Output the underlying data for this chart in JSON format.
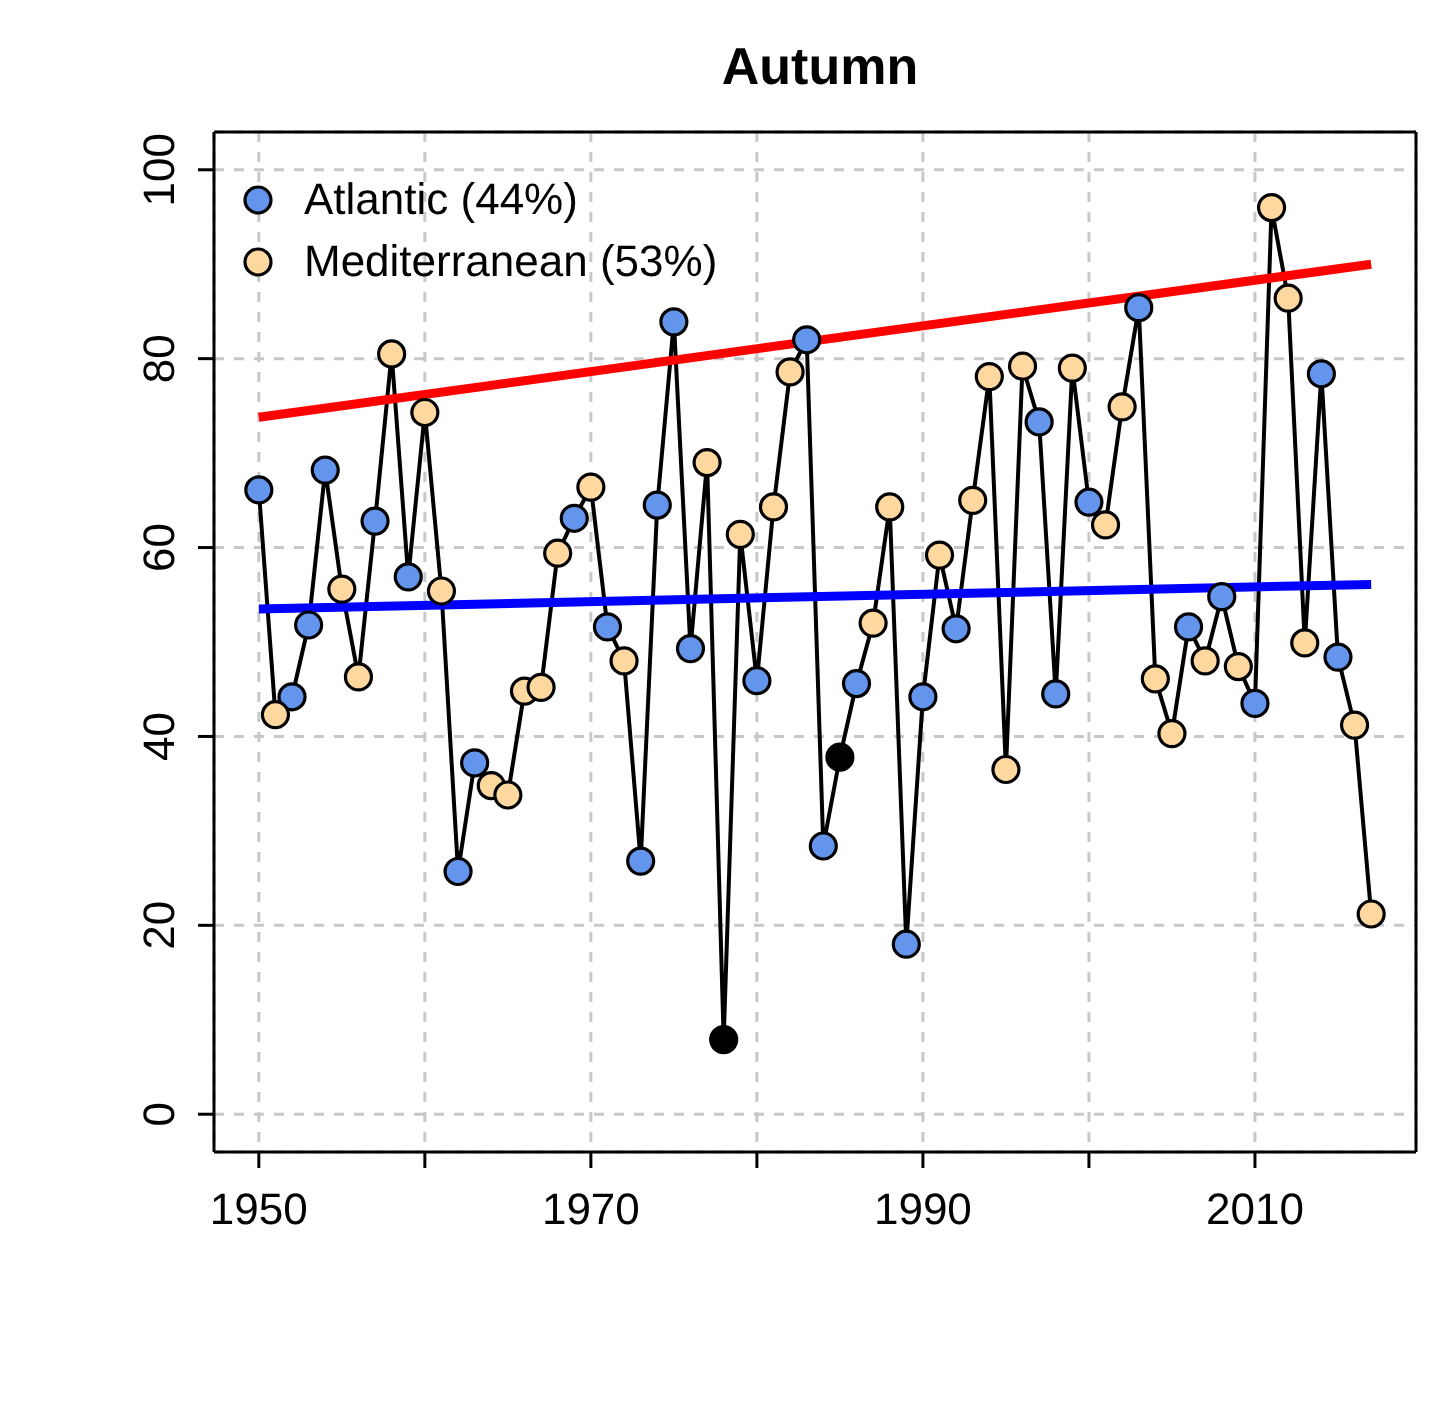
{
  "chart_data": {
    "type": "line",
    "title": "Autumn",
    "x": [
      1950,
      1951,
      1952,
      1953,
      1954,
      1955,
      1956,
      1957,
      1958,
      1959,
      1960,
      1961,
      1962,
      1963,
      1964,
      1965,
      1966,
      1967,
      1968,
      1969,
      1970,
      1971,
      1972,
      1973,
      1974,
      1975,
      1976,
      1977,
      1978,
      1979,
      1980,
      1981,
      1982,
      1983,
      1984,
      1985,
      1986,
      1987,
      1988,
      1989,
      1990,
      1991,
      1992,
      1993,
      1994,
      1995,
      1996,
      1997,
      1998,
      1999,
      2000,
      2001,
      2002,
      2003,
      2004,
      2005,
      2006,
      2007,
      2008,
      2009,
      2010,
      2011,
      2012,
      2013,
      2014,
      2015,
      2016,
      2017
    ],
    "series": [
      {
        "color": "#000000",
        "marker": "none",
        "values": [
          66.1,
          42.3,
          44.2,
          51.8,
          68.2,
          55.6,
          46.3,
          62.8,
          80.5,
          56.9,
          74.3,
          55.4,
          25.7,
          37.2,
          34.8,
          33.8,
          44.8,
          45.2,
          59.4,
          63.1,
          66.4,
          51.6,
          48.0,
          26.8,
          64.5,
          83.9,
          49.3,
          69.0,
          7.9,
          61.4,
          45.9,
          64.3,
          78.6,
          82.0,
          28.4,
          37.8,
          45.6,
          52.0,
          64.3,
          18.0,
          44.2,
          59.2,
          51.4,
          65.0,
          78.1,
          36.5,
          79.2,
          73.3,
          44.5,
          79.0,
          64.8,
          62.4,
          74.9,
          85.4,
          46.1,
          40.3,
          51.6,
          48.0,
          54.8,
          47.4,
          43.5,
          96.0,
          86.4,
          49.9,
          78.4,
          48.4,
          41.2,
          21.2
        ]
      },
      {
        "color": "#ff0000",
        "marker": "none",
        "x": [
          1950,
          2017
        ],
        "values": [
          73.8,
          90.0
        ]
      },
      {
        "color": "#0000ff",
        "marker": "none",
        "x": [
          1950,
          2017
        ],
        "values": [
          53.5,
          56.1
        ]
      },
      {
        "type": "scatter",
        "name": "Atlantic (44%)",
        "color": "#6495ed",
        "x": [
          1950,
          1952,
          1953,
          1954,
          1957,
          1959,
          1962,
          1963,
          1969,
          1971,
          1973,
          1974,
          1975,
          1976,
          1980,
          1983,
          1984,
          1986,
          1989,
          1990,
          1992,
          1997,
          1998,
          2000,
          2003,
          2006,
          2008,
          2010,
          2014,
          2015
        ],
        "values": [
          66.1,
          44.2,
          51.8,
          68.2,
          62.8,
          56.9,
          25.7,
          37.2,
          63.1,
          51.6,
          26.8,
          64.5,
          83.9,
          49.3,
          45.9,
          82.0,
          28.4,
          45.6,
          18.0,
          44.2,
          51.4,
          73.3,
          44.5,
          64.8,
          85.4,
          51.6,
          54.8,
          43.5,
          78.4,
          48.4
        ]
      },
      {
        "type": "scatter",
        "name": "Mediterranean (53%)",
        "color": "#ffd8a0",
        "x": [
          1951,
          1955,
          1956,
          1958,
          1960,
          1961,
          1964,
          1965,
          1966,
          1967,
          1968,
          1970,
          1972,
          1977,
          1979,
          1981,
          1982,
          1987,
          1988,
          1991,
          1993,
          1994,
          1995,
          1996,
          1999,
          2001,
          2002,
          2004,
          2005,
          2007,
          2009,
          2011,
          2012,
          2013,
          2016,
          2017
        ],
        "values": [
          42.3,
          55.6,
          46.3,
          80.5,
          74.3,
          55.4,
          34.8,
          33.8,
          44.8,
          45.2,
          59.4,
          66.4,
          48.0,
          69.0,
          61.4,
          64.3,
          78.6,
          52.0,
          64.3,
          59.2,
          65.0,
          78.1,
          36.5,
          79.2,
          79.0,
          62.4,
          74.9,
          46.1,
          40.3,
          48.0,
          47.4,
          96.0,
          86.4,
          49.9,
          41.2,
          21.2
        ]
      },
      {
        "type": "scatter",
        "color": "#000000",
        "x": [
          1978,
          1985
        ],
        "values": [
          7.9,
          37.8
        ]
      }
    ],
    "xlim": [
      1947.3,
      2019.7
    ],
    "xticks": [
      1950,
      {
        "value": 1960,
        "label": null
      },
      1970,
      {
        "value": 1980,
        "label": null
      },
      1990,
      {
        "value": 2000,
        "label": null
      },
      2010
    ],
    "ylim": [
      -4,
      104
    ],
    "yticks": [
      0,
      20,
      40,
      60,
      80,
      100
    ],
    "grid": true,
    "legend": "top left",
    "marker": "circle"
  }
}
